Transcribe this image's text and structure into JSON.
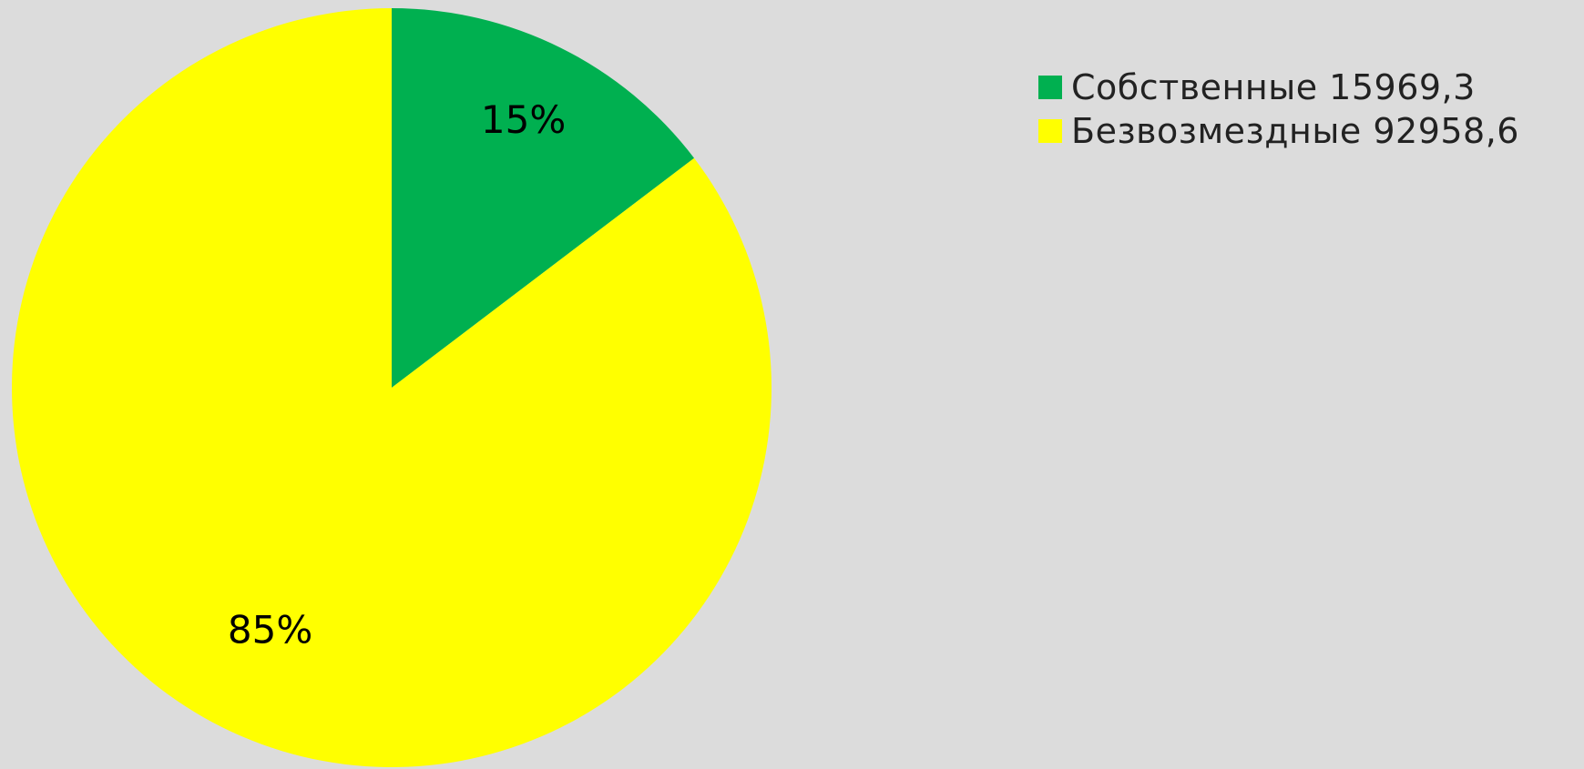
{
  "chart_data": {
    "type": "pie",
    "slices": [
      {
        "name": "Собственные 15969,3",
        "value": 15969.3,
        "percent_label": "15%",
        "color": "#00b050"
      },
      {
        "name": "Безвозмездные 92958,6",
        "value": 92958.6,
        "percent_label": "85%",
        "color": "#ffff00"
      }
    ],
    "legend_position": "top-right",
    "start_angle_deg": 0,
    "direction": "clockwise"
  }
}
